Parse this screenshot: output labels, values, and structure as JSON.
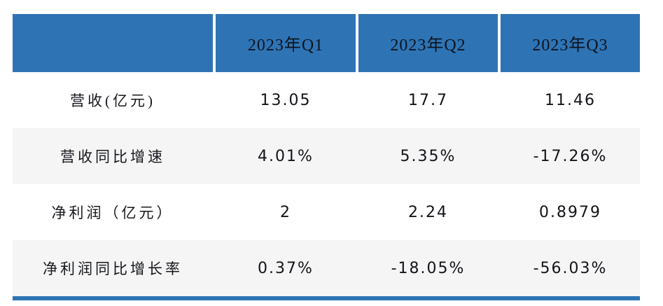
{
  "colors": {
    "header_blue": "#2E74B5",
    "row_alt_gray": "#F5F5F6",
    "text_dark": "#121418"
  },
  "chart_data": {
    "type": "table",
    "title": "",
    "columns": [
      "",
      "2023年Q1",
      "2023年Q2",
      "2023年Q3"
    ],
    "rows": [
      {
        "label": "营收(亿元)",
        "values": [
          "13.05",
          "17.7",
          "11.46"
        ]
      },
      {
        "label": "营收同比增速",
        "values": [
          "4.01%",
          "5.35%",
          "-17.26%"
        ]
      },
      {
        "label": "净利润（亿元）",
        "values": [
          "2",
          "2.24",
          "0.8979"
        ]
      },
      {
        "label": "净利润同比增长率",
        "values": [
          "0.37%",
          "-18.05%",
          "-56.03%"
        ]
      }
    ],
    "layout": {
      "header_background": "#2E74B5",
      "alternating_row_background": "#F5F5F6",
      "bottom_accent_bar": "#2E74B5",
      "header_text_color": "#0e1420",
      "column_dividers": "white gaps in header row only"
    }
  }
}
